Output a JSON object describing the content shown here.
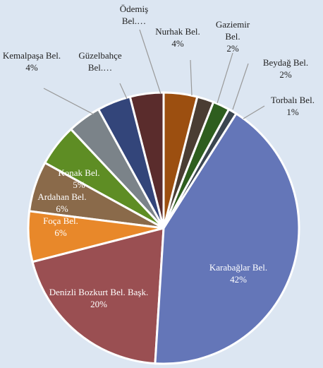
{
  "chart_data": {
    "type": "pie",
    "categories": [
      "Nurhak Bel.",
      "Gaziemir Bel.",
      "Beydağ Bel.",
      "Torbalı Bel.",
      "Karabağlar Bel.",
      "Denizli Bozkurt Bel. Başk.",
      "Foça Bel.",
      "Ardahan Bel.",
      "Konak Bel.",
      "Kemalpaşa Bel.",
      "Güzelbahçe Bel.…",
      "Ödemiş Bel.…"
    ],
    "values": [
      4,
      2,
      2,
      1,
      42,
      20,
      6,
      6,
      5,
      4,
      4,
      4
    ],
    "value_labels": [
      "4%",
      "2%",
      "2%",
      "1%",
      "42%",
      "20%",
      "6%",
      "6%",
      "5%",
      "4%",
      null,
      null
    ],
    "colors": [
      "#9c4f10",
      "#4a3d33",
      "#2e5e1e",
      "#3b4650",
      "#6476b8",
      "#9a4f52",
      "#e8882a",
      "#8a6a4a",
      "#5e8d24",
      "#7b8389",
      "#33457a",
      "#5a2c2c"
    ]
  }
}
